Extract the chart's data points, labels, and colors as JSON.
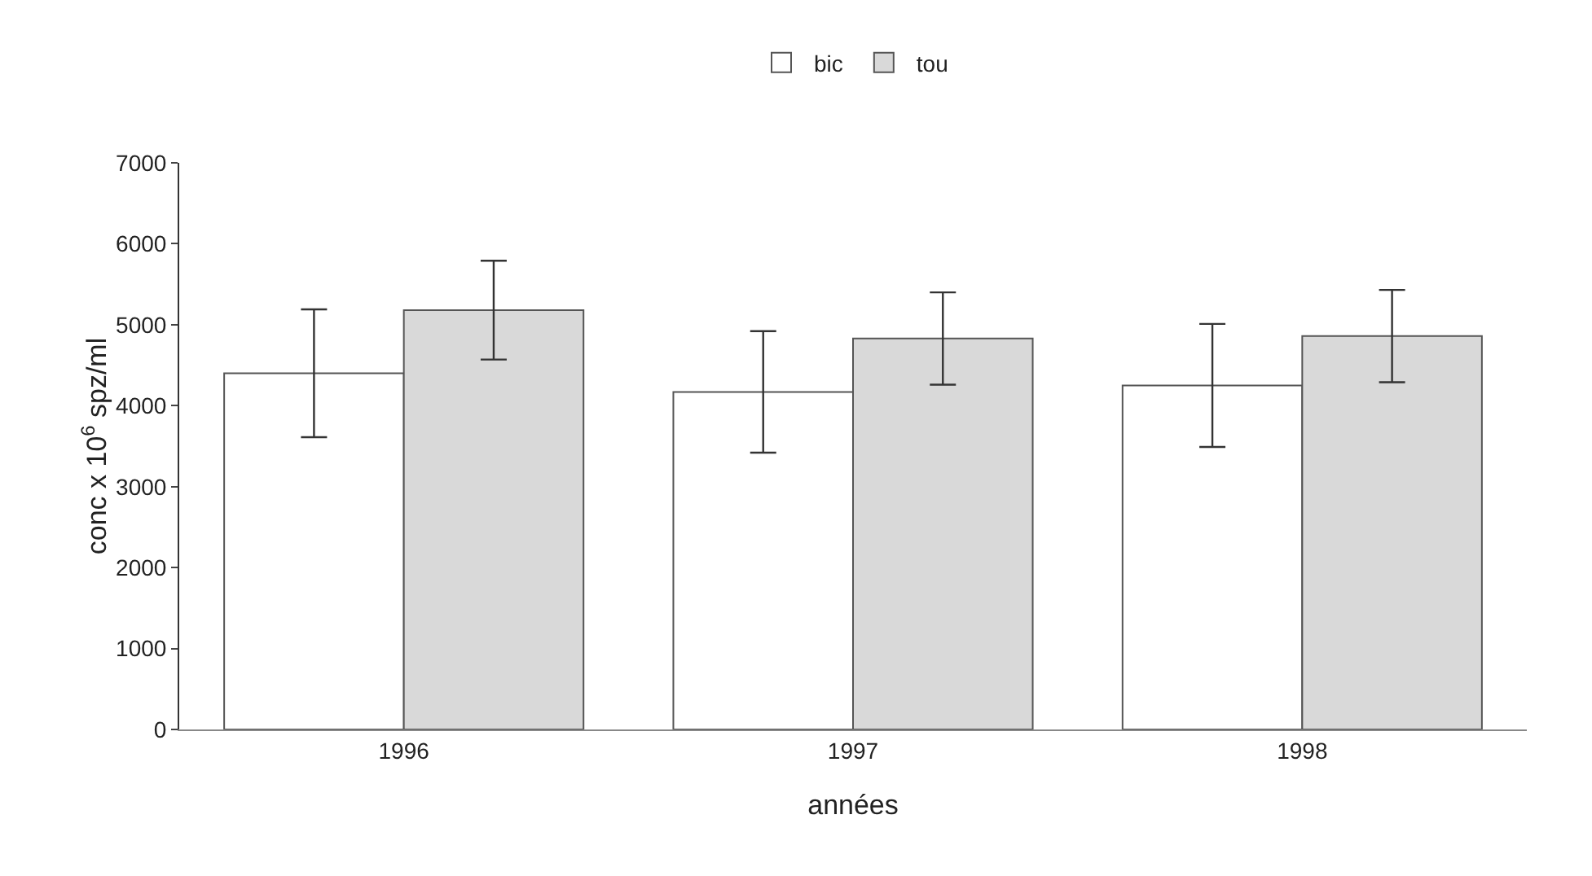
{
  "chart_data": {
    "type": "bar",
    "xlabel": "années",
    "ylabel": "conc x 10$^{6}$ spz/ml",
    "categories": [
      "1996",
      "1997",
      "1998"
    ],
    "series": [
      {
        "name": "bic",
        "color": "#ffffff",
        "values": [
          4400,
          4170,
          4250
        ],
        "errors": [
          790,
          750,
          760
        ]
      },
      {
        "name": "tou",
        "color": "#d9d9d9",
        "values": [
          5180,
          4830,
          4860
        ],
        "errors": [
          610,
          570,
          570
        ]
      }
    ],
    "ylim": [
      0,
      7000
    ],
    "yticks": [
      0,
      1000,
      2000,
      3000,
      4000,
      5000,
      6000,
      7000
    ],
    "grid": false,
    "legend": "top"
  }
}
